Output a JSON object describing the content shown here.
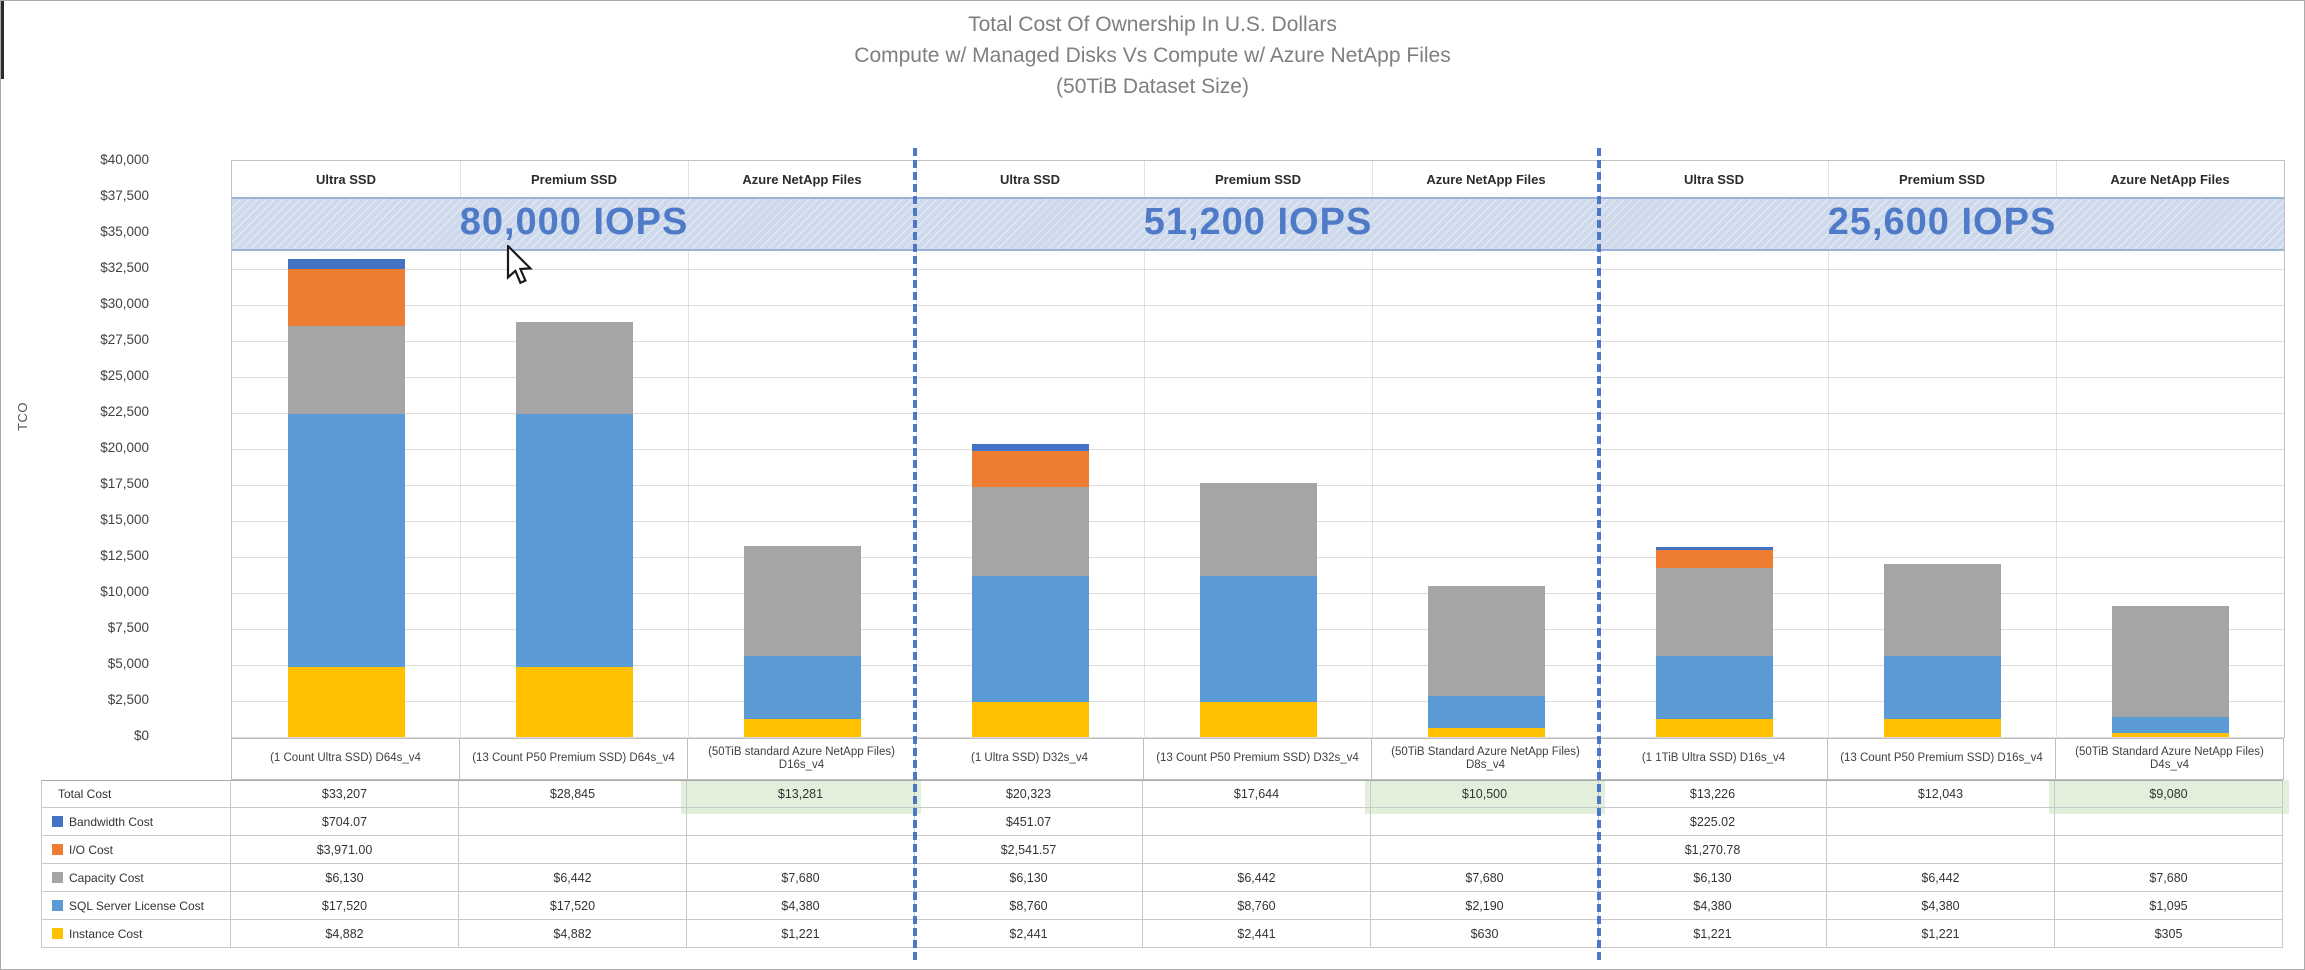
{
  "title": {
    "line1": "Total Cost Of Ownership In U.S. Dollars",
    "line2": "Compute w/ Managed Disks Vs Compute w/ Azure NetApp Files",
    "line3": "(50TiB Dataset Size)"
  },
  "y_axis": {
    "label": "TCO",
    "ticks": [
      "$40,000",
      "$37,500",
      "$35,000",
      "$32,500",
      "$30,000",
      "$27,500",
      "$25,000",
      "$22,500",
      "$20,000",
      "$17,500",
      "$15,000",
      "$12,500",
      "$10,000",
      "$7,500",
      "$5,000",
      "$2,500",
      "$0"
    ]
  },
  "chart_data": {
    "type": "bar",
    "stacked": true,
    "title": "Total Cost Of Ownership In U.S. Dollars — Compute w/ Managed Disks Vs Compute w/ Azure NetApp Files (50TiB Dataset Size)",
    "ylabel": "TCO",
    "ylim": [
      0,
      40000
    ],
    "ytick_step": 2500,
    "grid": true,
    "legend_position": "left-table",
    "column_headers": [
      "Ultra SSD",
      "Premium SSD",
      "Azure NetApp Files"
    ],
    "group_labels": [
      "80,000 IOPS",
      "51,200 IOPS",
      "25,600 IOPS"
    ],
    "iops_band": {
      "from": 33750,
      "to": 37500,
      "fill": "#cedaeb",
      "border": "#9cb3d6",
      "text_color": "#4472c4"
    },
    "categories": [
      "(1  Count Ultra SSD) D64s_v4",
      "(13 Count P50 Premium SSD) D64s_v4",
      "(50TiB standard Azure NetApp Files) D16s_v4",
      "(1 Ultra SSD) D32s_v4",
      "(13 Count P50 Premium SSD) D32s_v4",
      "(50TiB Standard Azure NetApp Files) D8s_v4",
      "(1 1TiB Ultra SSD) D16s_v4",
      "(13 Count P50 Premium SSD) D16s_v4",
      "(50TiB Standard Azure NetApp Files) D4s_v4"
    ],
    "series": [
      {
        "name": "Instance Cost",
        "color": "#FFC000",
        "values": [
          4882,
          4882,
          1221,
          2441,
          2441,
          630,
          1221,
          1221,
          305
        ]
      },
      {
        "name": "SQL Server License Cost",
        "color": "#5B9BD5",
        "values": [
          17520,
          17520,
          4380,
          8760,
          8760,
          2190,
          4380,
          4380,
          1095
        ]
      },
      {
        "name": "Capacity Cost",
        "color": "#A5A5A5",
        "values": [
          6130,
          6442,
          7680,
          6130,
          6442,
          7680,
          6130,
          6442,
          7680
        ]
      },
      {
        "name": "I/O Cost",
        "color": "#ED7D31",
        "values": [
          3971,
          0,
          0,
          2541.57,
          0,
          0,
          1270.78,
          0,
          0
        ]
      },
      {
        "name": "Bandwidth Cost",
        "color": "#4472C4",
        "values": [
          704.07,
          0,
          0,
          451.07,
          0,
          0,
          225.02,
          0,
          0
        ]
      }
    ],
    "totals": [
      33207,
      28845,
      13281,
      20323,
      17644,
      10500,
      13226,
      12043,
      9080
    ]
  },
  "table": {
    "highlight_color": "#e2efda",
    "rows": [
      {
        "label": "Total Cost",
        "swatch": null,
        "highlight": [
          2,
          5,
          8
        ],
        "values": [
          "$33,207",
          "$28,845",
          "$13,281",
          "$20,323",
          "$17,644",
          "$10,500",
          "$13,226",
          "$12,043",
          "$9,080"
        ]
      },
      {
        "label": "Bandwidth Cost",
        "swatch": "#4472C4",
        "highlight": [],
        "values": [
          "$704.07",
          "",
          "",
          "$451.07",
          "",
          "",
          "$225.02",
          "",
          ""
        ]
      },
      {
        "label": "I/O Cost",
        "swatch": "#ED7D31",
        "highlight": [],
        "values": [
          "$3,971.00",
          "",
          "",
          "$2,541.57",
          "",
          "",
          "$1,270.78",
          "",
          ""
        ]
      },
      {
        "label": "Capacity Cost",
        "swatch": "#A5A5A5",
        "highlight": [],
        "values": [
          "$6,130",
          "$6,442",
          "$7,680",
          "$6,130",
          "$6,442",
          "$7,680",
          "$6,130",
          "$6,442",
          "$7,680"
        ]
      },
      {
        "label": "SQL Server License Cost",
        "swatch": "#5B9BD5",
        "highlight": [],
        "values": [
          "$17,520",
          "$17,520",
          "$4,380",
          "$8,760",
          "$8,760",
          "$2,190",
          "$4,380",
          "$4,380",
          "$1,095"
        ]
      },
      {
        "label": "Instance Cost",
        "swatch": "#FFC000",
        "highlight": [],
        "values": [
          "$4,882",
          "$4,882",
          "$1,221",
          "$2,441",
          "$2,441",
          "$630",
          "$1,221",
          "$1,221",
          "$305"
        ]
      }
    ]
  },
  "cursor": {
    "type": "arrow-pointer"
  }
}
